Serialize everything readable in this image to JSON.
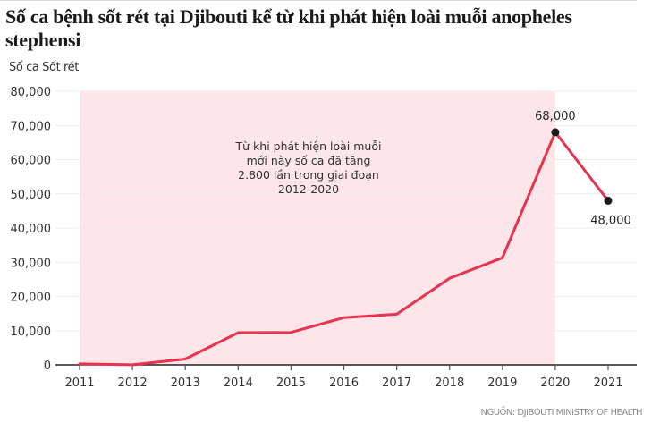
{
  "chart_data": {
    "type": "line",
    "title": "Số ca bệnh sốt rét tại Djibouti kể từ khi phát hiện loài muỗi anopheles stephensi",
    "ylabel": "Số ca Sốt rét",
    "xlabel": "",
    "x": [
      "2011",
      "2012",
      "2013",
      "2014",
      "2015",
      "2016",
      "2017",
      "2018",
      "2019",
      "2020",
      "2021"
    ],
    "series": [
      {
        "name": "Số ca Sốt rét",
        "color": "#e8334f",
        "values": [
          300,
          25,
          1700,
          9400,
          9500,
          13800,
          14800,
          25300,
          31300,
          68000,
          48000
        ]
      }
    ],
    "ylim": [
      0,
      80000
    ],
    "yticks": [
      0,
      10000,
      20000,
      30000,
      40000,
      50000,
      60000,
      70000,
      80000
    ],
    "ytick_labels": [
      "0",
      "10,000",
      "20,000",
      "30,000",
      "40,000",
      "50,000",
      "60,000",
      "70,000",
      "80,000"
    ],
    "grid": true,
    "highlight_region": {
      "from": "2011",
      "to": "2020",
      "color": "#fde5e9"
    },
    "annotation_lines": [
      "Từ khi phát hiện loài muỗi",
      "mới này số ca đã tăng",
      "2.800 lần trong giai đoạn",
      "2012-2020"
    ],
    "data_labels": [
      {
        "x": "2020",
        "value": 68000,
        "text": "68,000"
      },
      {
        "x": "2021",
        "value": 48000,
        "text": "48,000"
      }
    ],
    "source": "NGUỒN: DJIBOUTI MINISTRY OF HEALTH"
  },
  "colors": {
    "line": "#e8334f",
    "marker": "#1a1a1a",
    "highlight": "#fde5e9",
    "grid": "#ececec",
    "axis": "#222222"
  }
}
